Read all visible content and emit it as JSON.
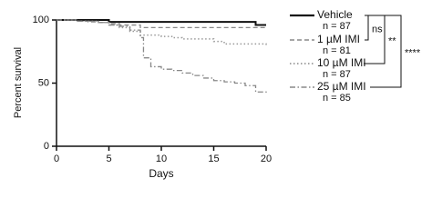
{
  "chart_data": {
    "type": "step",
    "xlabel": "Days",
    "ylabel": "Percent survival",
    "xlim": [
      0,
      20
    ],
    "xticks": [
      0,
      5,
      10,
      15,
      20
    ],
    "ylim": [
      0,
      100
    ],
    "yticks": [
      0,
      50,
      100
    ],
    "series": [
      {
        "name": "Vehicle",
        "n_label": "n = 87",
        "color": "#111111",
        "line_style": "solid",
        "x": [
          0,
          5,
          19,
          20
        ],
        "values": [
          100,
          98.5,
          96,
          96
        ]
      },
      {
        "name": "1 µM IMI",
        "n_label": "n = 81",
        "color": "#888888",
        "line_style": "dashed",
        "x": [
          0,
          2,
          3,
          4,
          5,
          6,
          8,
          20
        ],
        "values": [
          100,
          99,
          98.5,
          98,
          97,
          96,
          94,
          94
        ]
      },
      {
        "name": "10 µM IMI",
        "n_label": "n = 87",
        "color": "#999999",
        "line_style": "dotted",
        "x": [
          0,
          2,
          4,
          5,
          6,
          7,
          8,
          10,
          11,
          12,
          15,
          16,
          20
        ],
        "values": [
          100,
          99,
          98,
          96,
          94,
          91,
          88,
          87,
          86,
          85,
          83,
          81,
          80
        ]
      },
      {
        "name": "25 µM IMI",
        "n_label": "n = 85",
        "color": "#888888",
        "line_style": "dashdot",
        "x": [
          0,
          2,
          4,
          5,
          6,
          7,
          8,
          8.3,
          9,
          10,
          11,
          12,
          13,
          14,
          15,
          16,
          17,
          18,
          19,
          20
        ],
        "values": [
          100,
          99,
          98,
          96,
          95,
          92,
          86,
          70,
          63,
          61,
          60,
          58,
          56,
          54,
          52,
          51,
          50,
          48,
          43,
          42
        ]
      }
    ],
    "annotations": [
      "ns",
      "**",
      "****"
    ]
  }
}
